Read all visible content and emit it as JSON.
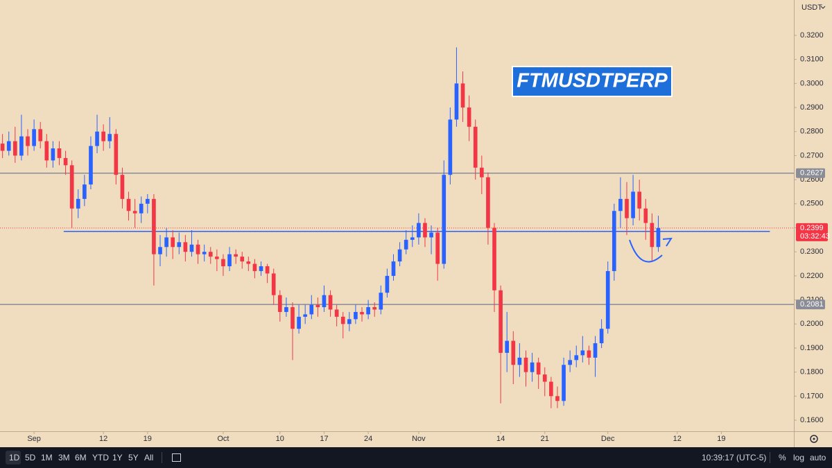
{
  "chart_data": {
    "type": "candlestick",
    "title": "FTMUSDTPERP",
    "y_unit": "USDT",
    "up_color": "#2962ff",
    "down_color": "#f23645",
    "open": [
      0.275,
      0.272,
      0.276,
      0.27,
      0.278,
      0.274,
      0.281,
      0.276,
      0.268,
      0.273,
      0.269,
      0.266,
      0.248,
      0.252,
      0.258,
      0.274,
      0.28,
      0.276,
      0.279,
      0.262,
      0.252,
      0.247,
      0.246,
      0.25,
      0.252,
      0.229,
      0.232,
      0.236,
      0.232,
      0.234,
      0.23,
      0.233,
      0.229,
      0.23,
      0.228,
      0.227,
      0.224,
      0.229,
      0.228,
      0.226,
      0.225,
      0.222,
      0.224,
      0.221,
      0.212,
      0.205,
      0.207,
      0.198,
      0.203,
      0.204,
      0.208,
      0.207,
      0.212,
      0.206,
      0.203,
      0.2,
      0.202,
      0.205,
      0.204,
      0.207,
      0.206,
      0.213,
      0.22,
      0.226,
      0.231,
      0.235,
      0.236,
      0.242,
      0.236,
      0.238,
      0.225,
      0.262,
      0.285,
      0.3,
      0.29,
      0.282,
      0.265,
      0.261,
      0.24,
      0.214,
      0.188,
      0.193,
      0.183,
      0.186,
      0.18,
      0.184,
      0.179,
      0.176,
      0.17,
      0.168,
      0.183,
      0.185,
      0.187,
      0.189,
      0.186,
      0.192,
      0.198,
      0.222,
      0.247,
      0.252,
      0.244,
      0.255,
      0.248,
      0.242,
      0.232
    ],
    "high": [
      0.279,
      0.28,
      0.282,
      0.287,
      0.281,
      0.285,
      0.284,
      0.279,
      0.276,
      0.276,
      0.272,
      0.268,
      0.256,
      0.262,
      0.278,
      0.287,
      0.283,
      0.286,
      0.281,
      0.265,
      0.255,
      0.252,
      0.253,
      0.254,
      0.254,
      0.237,
      0.24,
      0.239,
      0.238,
      0.237,
      0.239,
      0.235,
      0.233,
      0.232,
      0.231,
      0.229,
      0.232,
      0.231,
      0.23,
      0.228,
      0.227,
      0.226,
      0.225,
      0.223,
      0.214,
      0.211,
      0.209,
      0.208,
      0.208,
      0.212,
      0.211,
      0.216,
      0.214,
      0.208,
      0.205,
      0.205,
      0.208,
      0.207,
      0.21,
      0.209,
      0.216,
      0.223,
      0.229,
      0.234,
      0.239,
      0.241,
      0.246,
      0.244,
      0.241,
      0.24,
      0.268,
      0.29,
      0.315,
      0.305,
      0.295,
      0.285,
      0.27,
      0.263,
      0.242,
      0.216,
      0.205,
      0.197,
      0.192,
      0.189,
      0.188,
      0.186,
      0.182,
      0.178,
      0.174,
      0.186,
      0.189,
      0.191,
      0.195,
      0.191,
      0.195,
      0.202,
      0.226,
      0.25,
      0.261,
      0.259,
      0.262,
      0.26,
      0.252,
      0.246,
      0.245
    ],
    "low": [
      0.269,
      0.27,
      0.267,
      0.268,
      0.27,
      0.272,
      0.273,
      0.265,
      0.265,
      0.266,
      0.262,
      0.24,
      0.244,
      0.249,
      0.256,
      0.271,
      0.272,
      0.273,
      0.258,
      0.248,
      0.243,
      0.24,
      0.242,
      0.246,
      0.216,
      0.224,
      0.228,
      0.227,
      0.229,
      0.226,
      0.228,
      0.225,
      0.226,
      0.225,
      0.222,
      0.22,
      0.222,
      0.225,
      0.223,
      0.222,
      0.219,
      0.22,
      0.217,
      0.208,
      0.201,
      0.203,
      0.185,
      0.196,
      0.2,
      0.202,
      0.203,
      0.205,
      0.203,
      0.199,
      0.194,
      0.197,
      0.2,
      0.201,
      0.202,
      0.203,
      0.204,
      0.211,
      0.218,
      0.224,
      0.229,
      0.232,
      0.233,
      0.232,
      0.229,
      0.218,
      0.223,
      0.258,
      0.282,
      0.284,
      0.276,
      0.26,
      0.254,
      0.233,
      0.205,
      0.167,
      0.18,
      0.175,
      0.178,
      0.174,
      0.176,
      0.173,
      0.17,
      0.165,
      0.165,
      0.166,
      0.18,
      0.182,
      0.184,
      0.183,
      0.178,
      0.19,
      0.196,
      0.218,
      0.24,
      0.237,
      0.241,
      0.243,
      0.235,
      0.226,
      0.23
    ],
    "close": [
      0.272,
      0.276,
      0.27,
      0.278,
      0.274,
      0.281,
      0.276,
      0.268,
      0.273,
      0.269,
      0.266,
      0.248,
      0.252,
      0.258,
      0.274,
      0.28,
      0.276,
      0.279,
      0.262,
      0.252,
      0.247,
      0.246,
      0.25,
      0.252,
      0.229,
      0.232,
      0.236,
      0.232,
      0.234,
      0.23,
      0.233,
      0.229,
      0.23,
      0.228,
      0.227,
      0.224,
      0.229,
      0.228,
      0.226,
      0.225,
      0.222,
      0.224,
      0.221,
      0.212,
      0.205,
      0.207,
      0.198,
      0.203,
      0.204,
      0.208,
      0.207,
      0.212,
      0.206,
      0.203,
      0.2,
      0.202,
      0.205,
      0.204,
      0.207,
      0.206,
      0.213,
      0.22,
      0.226,
      0.231,
      0.235,
      0.236,
      0.242,
      0.236,
      0.238,
      0.225,
      0.262,
      0.285,
      0.3,
      0.29,
      0.282,
      0.265,
      0.261,
      0.24,
      0.214,
      0.188,
      0.193,
      0.183,
      0.186,
      0.18,
      0.184,
      0.179,
      0.176,
      0.17,
      0.168,
      0.183,
      0.185,
      0.187,
      0.189,
      0.186,
      0.192,
      0.198,
      0.222,
      0.247,
      0.252,
      0.244,
      0.255,
      0.248,
      0.242,
      0.232,
      0.2399
    ],
    "xlim": [
      -0.4,
      125.5
    ],
    "xticks": [
      {
        "value": 5,
        "label": "Sep"
      },
      {
        "value": 16,
        "label": "12"
      },
      {
        "value": 23,
        "label": "19"
      },
      {
        "value": 35,
        "label": "Oct"
      },
      {
        "value": 44,
        "label": "10"
      },
      {
        "value": 51,
        "label": "17"
      },
      {
        "value": 58,
        "label": "24"
      },
      {
        "value": 66,
        "label": "Nov"
      },
      {
        "value": 79,
        "label": "14"
      },
      {
        "value": 86,
        "label": "21"
      },
      {
        "value": 96,
        "label": "Dec"
      },
      {
        "value": 107,
        "label": "12"
      },
      {
        "value": 114,
        "label": "19"
      }
    ],
    "ylim": [
      0.1554,
      0.3347
    ],
    "yticks": [
      {
        "value": 0.16,
        "label": "0.1600"
      },
      {
        "value": 0.17,
        "label": "0.1700"
      },
      {
        "value": 0.18,
        "label": "0.1800"
      },
      {
        "value": 0.19,
        "label": "0.1900"
      },
      {
        "value": 0.2,
        "label": "0.2000"
      },
      {
        "value": 0.21,
        "label": "0.2100"
      },
      {
        "value": 0.22,
        "label": "0.2200"
      },
      {
        "value": 0.23,
        "label": "0.2300"
      },
      {
        "value": 0.24,
        "label": "0.2400"
      },
      {
        "value": 0.25,
        "label": "0.2500"
      },
      {
        "value": 0.26,
        "label": "0.2600"
      },
      {
        "value": 0.27,
        "label": "0.2700"
      },
      {
        "value": 0.28,
        "label": "0.2800"
      },
      {
        "value": 0.29,
        "label": "0.2900"
      },
      {
        "value": 0.3,
        "label": "0.3000"
      },
      {
        "value": 0.31,
        "label": "0.3100"
      },
      {
        "value": 0.32,
        "label": "0.3200"
      }
    ],
    "levels": [
      {
        "value": 0.2627,
        "label": "0.2627",
        "color": "#8a8d96"
      },
      {
        "value": 0.2081,
        "label": "0.2081",
        "color": "#8a8d96"
      }
    ],
    "support": {
      "value": 0.2385,
      "x": [
        9.7,
        121.7
      ],
      "color": "#2962ff"
    },
    "last_price": {
      "value": 0.2399,
      "label": "0.2399",
      "countdown": "03:32:43",
      "color": "#f23645"
    }
  },
  "toolbar": {
    "ranges": [
      "1D",
      "5D",
      "1M",
      "3M",
      "6M",
      "YTD",
      "1Y",
      "5Y",
      "All"
    ],
    "time": "10:39:17 (UTC-5)",
    "options": [
      "%",
      "log",
      "auto"
    ]
  }
}
